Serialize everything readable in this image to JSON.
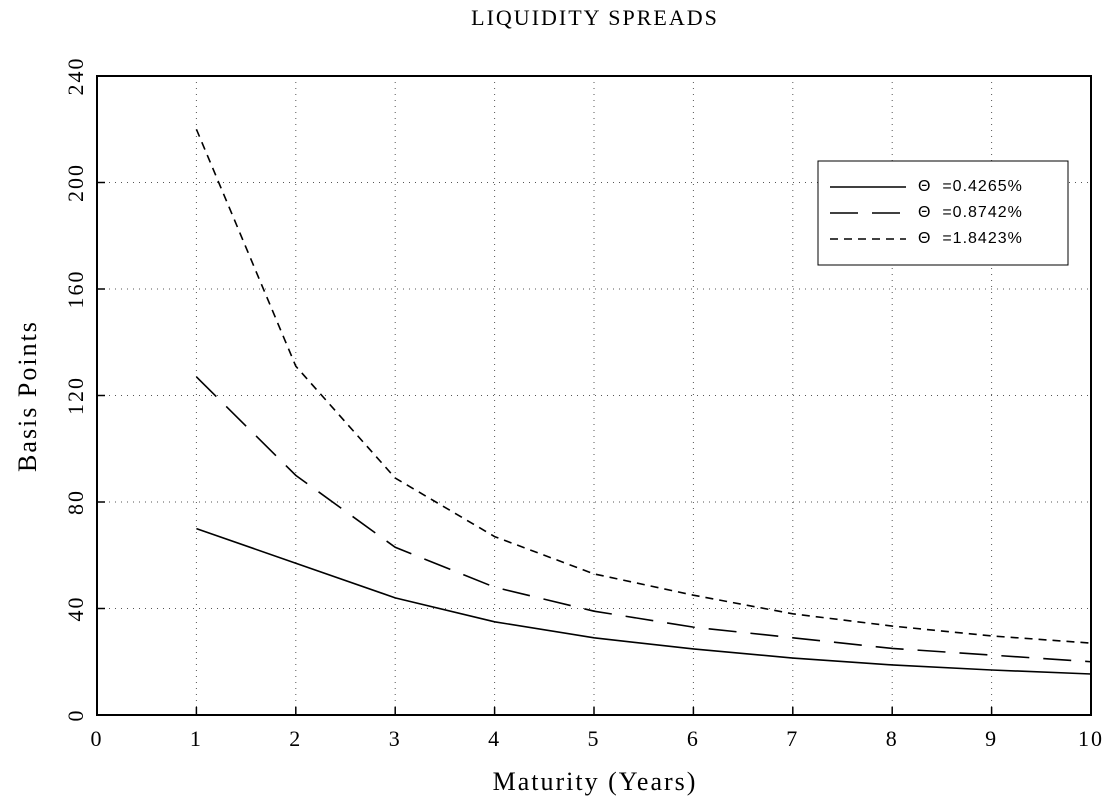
{
  "chart_data": {
    "type": "line",
    "title": "LIQUIDITY SPREADS",
    "x_label": "Maturity (Years)",
    "y_label": "Basis Points",
    "x": [
      1,
      2,
      3,
      4,
      5,
      6,
      7,
      8,
      9,
      10
    ],
    "series": [
      {
        "name": "Θ  =0.4265%",
        "color": "#000000",
        "dash": "solid",
        "values": [
          70,
          57,
          44,
          35,
          29,
          24.8,
          21.4,
          18.8,
          16.9,
          15.4
        ]
      },
      {
        "name": "Θ  =0.8742%",
        "color": "#000000",
        "dash": "long",
        "values": [
          127,
          90,
          63,
          48,
          39,
          33,
          29,
          25,
          22.5,
          20
        ]
      },
      {
        "name": "Θ  =1.8423%",
        "color": "#000000",
        "dash": "short",
        "values": [
          220,
          131,
          89,
          67,
          53,
          45,
          38,
          33.4,
          29.7,
          27
        ]
      }
    ],
    "xlim": [
      0,
      10
    ],
    "xticks": [
      0,
      1,
      2,
      3,
      4,
      5,
      6,
      7,
      8,
      9,
      10
    ],
    "ylim": [
      0,
      240
    ],
    "yticks": [
      0,
      40,
      80,
      120,
      160,
      200,
      240
    ],
    "grid": true,
    "legend": "upper right"
  }
}
